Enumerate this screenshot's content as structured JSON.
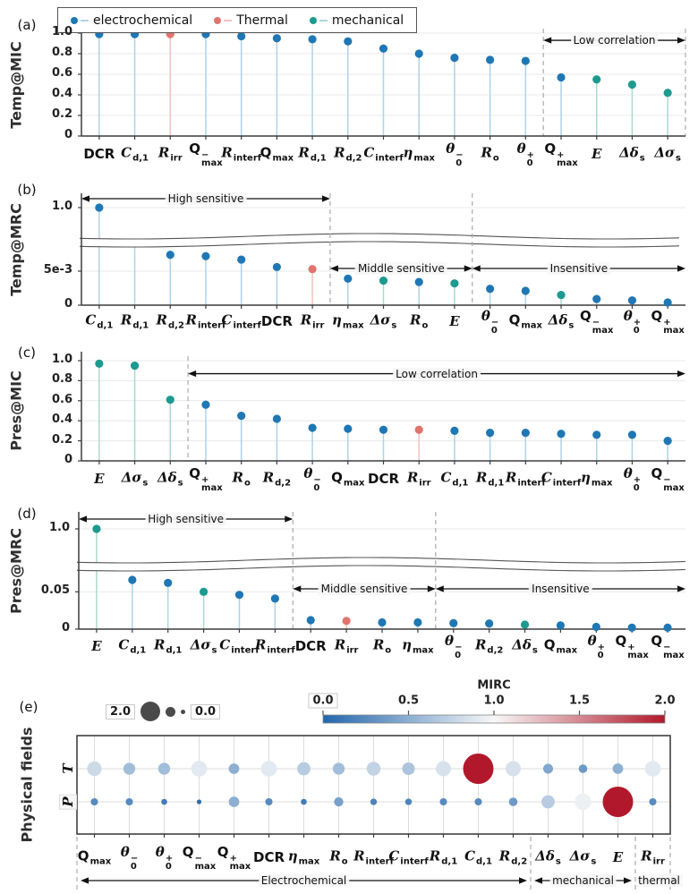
{
  "panel_letters": [
    "(a)",
    "(b)",
    "(c)",
    "(d)",
    "(e)"
  ],
  "legend": {
    "items": [
      {
        "label": "electrochemical",
        "group": "e"
      },
      {
        "label": "Thermal",
        "group": "t"
      },
      {
        "label": "mechanical",
        "group": "m"
      }
    ]
  },
  "colors": {
    "e": "#1f77b4",
    "t": "#e0746e",
    "m": "#1d9a8f",
    "stem_e": "#aed3e6",
    "stem_t": "#f3c1bb",
    "stem_m": "#a9d9cf",
    "grid": "#e8e8e8",
    "axis": "#3c3c3c",
    "dashed": "#aaaaaa",
    "band": "#555555",
    "arrow": "#111111",
    "cmap_low": "#2166ac",
    "cmap_mid": "#f7f7f7",
    "cmap_high": "#b2182b",
    "size_dot": "#4a4a4a"
  },
  "chart_data": [
    {
      "id": "a",
      "type": "stem",
      "ylabel": "Temp@MIC",
      "yticks": [
        "1.0",
        "0.8",
        "0.6",
        "0.4",
        "0.2",
        "0"
      ],
      "ytick_vals": [
        1.0,
        0.8,
        0.6,
        0.4,
        0.2,
        0
      ],
      "categories": [
        {
          "t": "DCR"
        },
        {
          "t": "C",
          "it": 1,
          "sub": "d,1"
        },
        {
          "t": "R",
          "it": 1,
          "sub": "irr"
        },
        {
          "t": "Q",
          "sk": {
            "sup": "−",
            "sub": "max"
          }
        },
        {
          "t": "R",
          "it": 1,
          "sub": "interf"
        },
        {
          "t": "Q",
          "sub": "max"
        },
        {
          "t": "R",
          "it": 1,
          "sub": "d,1"
        },
        {
          "t": "R",
          "it": 1,
          "sub": "d,2"
        },
        {
          "t": "C",
          "it": 1,
          "sub": "interf"
        },
        {
          "t": "η",
          "it": 1,
          "sub": "max"
        },
        {
          "t": "θ",
          "it": 1,
          "sk": {
            "sup": "−",
            "sub": "0"
          }
        },
        {
          "t": "R",
          "it": 1,
          "sub": "o"
        },
        {
          "t": "θ",
          "it": 1,
          "sk": {
            "sup": "+",
            "sub": "0"
          }
        },
        {
          "t": "Q",
          "sk": {
            "sup": "+",
            "sub": "max"
          }
        },
        {
          "t": "E",
          "it": 1
        },
        {
          "t": "Δδ",
          "it": 1,
          "sub": "s"
        },
        {
          "t": "Δσ",
          "it": 1,
          "sub": "s"
        }
      ],
      "groups": [
        "e",
        "e",
        "t",
        "e",
        "e",
        "e",
        "e",
        "e",
        "e",
        "e",
        "e",
        "e",
        "e",
        "e",
        "m",
        "m",
        "m"
      ],
      "values": [
        0.99,
        0.99,
        0.99,
        0.99,
        0.97,
        0.95,
        0.94,
        0.92,
        0.85,
        0.8,
        0.76,
        0.74,
        0.73,
        0.57,
        0.55,
        0.5,
        0.42
      ],
      "separators": [
        13,
        17
      ],
      "annotations": [
        {
          "text": "Low correlation",
          "from": 13,
          "to": 17,
          "v": 0.93
        }
      ]
    },
    {
      "id": "b",
      "type": "stem-broken",
      "ylabel": "Temp@MRC",
      "top_tick": "1.0",
      "bottom_ticks": [
        "5e-3",
        "0"
      ],
      "bottom_tick_vals": [
        0.005,
        0
      ],
      "bottom_max": 0.00855,
      "categories": [
        {
          "t": "C",
          "it": 1,
          "sub": "d,1"
        },
        {
          "t": "R",
          "it": 1,
          "sub": "d,1"
        },
        {
          "t": "R",
          "it": 1,
          "sub": "d,2"
        },
        {
          "t": "R",
          "it": 1,
          "sub": "interf"
        },
        {
          "t": "C",
          "it": 1,
          "sub": "interf"
        },
        {
          "t": "DCR"
        },
        {
          "t": "R",
          "it": 1,
          "sub": "irr"
        },
        {
          "t": "η",
          "it": 1,
          "sub": "max"
        },
        {
          "t": "Δσ",
          "it": 1,
          "sub": "s"
        },
        {
          "t": "R",
          "it": 1,
          "sub": "o"
        },
        {
          "t": "E",
          "it": 1
        },
        {
          "t": "θ",
          "it": 1,
          "sk": {
            "sup": "−",
            "sub": "0"
          }
        },
        {
          "t": "Q",
          "sub": "max"
        },
        {
          "t": "Δδ",
          "it": 1,
          "sub": "s"
        },
        {
          "t": "Q",
          "sk": {
            "sup": "−",
            "sub": "max"
          }
        },
        {
          "t": "θ",
          "it": 1,
          "sk": {
            "sup": "+",
            "sub": "0"
          }
        },
        {
          "t": "Q",
          "sk": {
            "sup": "+",
            "sub": "max"
          }
        }
      ],
      "groups": [
        "e",
        "e",
        "e",
        "e",
        "e",
        "e",
        "t",
        "e",
        "m",
        "e",
        "m",
        "e",
        "e",
        "m",
        "e",
        "e",
        "e"
      ],
      "values": [
        1.0,
        null,
        0.0074,
        0.0072,
        0.0067,
        0.0056,
        0.0053,
        0.0039,
        0.0036,
        0.0034,
        0.0032,
        0.0024,
        0.0021,
        0.0015,
        0.0009,
        0.0007,
        0.0004
      ],
      "separators": [
        7,
        11
      ],
      "annotations": [
        {
          "text": "High sensitive",
          "from": 0,
          "to": 7,
          "pos": "top"
        },
        {
          "text": "Middle sensitive",
          "from": 7,
          "to": 11,
          "pos": "mid"
        },
        {
          "text": "Insensitive",
          "from": 11,
          "to": 17,
          "pos": "mid"
        }
      ]
    },
    {
      "id": "c",
      "type": "stem",
      "ylabel": "Pres@MIC",
      "yticks": [
        "1.0",
        "0.8",
        "0.6",
        "0.4",
        "0.2",
        "0"
      ],
      "ytick_vals": [
        1.0,
        0.8,
        0.6,
        0.4,
        0.2,
        0
      ],
      "categories": [
        {
          "t": "E",
          "it": 1
        },
        {
          "t": "Δσ",
          "it": 1,
          "sub": "s"
        },
        {
          "t": "Δδ",
          "it": 1,
          "sub": "s"
        },
        {
          "t": "Q",
          "sk": {
            "sup": "+",
            "sub": "max"
          }
        },
        {
          "t": "R",
          "it": 1,
          "sub": "o"
        },
        {
          "t": "R",
          "it": 1,
          "sub": "d,2"
        },
        {
          "t": "θ",
          "it": 1,
          "sk": {
            "sup": "−",
            "sub": "0"
          }
        },
        {
          "t": "Q",
          "sub": "max"
        },
        {
          "t": "DCR"
        },
        {
          "t": "R",
          "it": 1,
          "sub": "irr"
        },
        {
          "t": "C",
          "it": 1,
          "sub": "d,1"
        },
        {
          "t": "R",
          "it": 1,
          "sub": "d,1"
        },
        {
          "t": "R",
          "it": 1,
          "sub": "interf"
        },
        {
          "t": "C",
          "it": 1,
          "sub": "interf"
        },
        {
          "t": "η",
          "it": 1,
          "sub": "max"
        },
        {
          "t": "θ",
          "it": 1,
          "sk": {
            "sup": "+",
            "sub": "0"
          }
        },
        {
          "t": "Q",
          "sk": {
            "sup": "−",
            "sub": "max"
          }
        }
      ],
      "groups": [
        "m",
        "m",
        "m",
        "e",
        "e",
        "e",
        "e",
        "e",
        "e",
        "t",
        "e",
        "e",
        "e",
        "e",
        "e",
        "e",
        "e"
      ],
      "values": [
        0.97,
        0.95,
        0.61,
        0.56,
        0.45,
        0.42,
        0.33,
        0.32,
        0.31,
        0.31,
        0.3,
        0.28,
        0.28,
        0.27,
        0.26,
        0.26,
        0.2
      ],
      "separators": [
        3
      ],
      "annotations": [
        {
          "text": "Low correlation",
          "from": 3,
          "to": 17,
          "v": 0.87
        }
      ]
    },
    {
      "id": "d",
      "type": "stem-broken",
      "ylabel": "Pres@MRC",
      "top_tick": "1.0",
      "bottom_ticks": [
        "0.05",
        "0"
      ],
      "bottom_tick_vals": [
        0.05,
        0
      ],
      "bottom_max": 0.078,
      "categories": [
        {
          "t": "E",
          "it": 1
        },
        {
          "t": "C",
          "it": 1,
          "sub": "d,1"
        },
        {
          "t": "R",
          "it": 1,
          "sub": "d,1"
        },
        {
          "t": "Δσ",
          "it": 1,
          "sub": "s"
        },
        {
          "t": "C",
          "it": 1,
          "sub": "interf"
        },
        {
          "t": "R",
          "it": 1,
          "sub": "interf"
        },
        {
          "t": "DCR"
        },
        {
          "t": "R",
          "it": 1,
          "sub": "irr"
        },
        {
          "t": "R",
          "it": 1,
          "sub": "o"
        },
        {
          "t": "η",
          "it": 1,
          "sub": "max"
        },
        {
          "t": "θ",
          "it": 1,
          "sk": {
            "sup": "−",
            "sub": "0"
          }
        },
        {
          "t": "R",
          "it": 1,
          "sub": "d,2"
        },
        {
          "t": "Δδ",
          "it": 1,
          "sub": "s"
        },
        {
          "t": "Q",
          "sub": "max"
        },
        {
          "t": "θ",
          "it": 1,
          "sk": {
            "sup": "+",
            "sub": "0"
          }
        },
        {
          "t": "Q",
          "sk": {
            "sup": "+",
            "sub": "max"
          }
        },
        {
          "t": "Q",
          "sk": {
            "sup": "−",
            "sub": "max"
          }
        }
      ],
      "groups": [
        "m",
        "e",
        "e",
        "m",
        "e",
        "e",
        "e",
        "t",
        "e",
        "e",
        "e",
        "e",
        "m",
        "e",
        "e",
        "e",
        "e"
      ],
      "values": [
        1.0,
        0.066,
        0.062,
        0.05,
        0.046,
        0.041,
        0.012,
        0.011,
        0.009,
        0.009,
        0.008,
        0.0075,
        0.006,
        0.005,
        0.003,
        0.002,
        0.002
      ],
      "separators": [
        6,
        10
      ],
      "annotations": [
        {
          "text": "High sensitive",
          "from": 0,
          "to": 6,
          "pos": "top"
        },
        {
          "text": "Middle sensitive",
          "from": 6,
          "to": 10,
          "pos": "mid"
        },
        {
          "text": "Insensitive",
          "from": 10,
          "to": 17,
          "pos": "mid"
        }
      ]
    },
    {
      "id": "e",
      "type": "bubble",
      "ylabel": "Physical fields",
      "rows": [
        "T",
        "P"
      ],
      "categories": [
        {
          "t": "Q",
          "sub": "max"
        },
        {
          "t": "θ",
          "it": 1,
          "sk": {
            "sup": "−",
            "sub": "0"
          }
        },
        {
          "t": "θ",
          "it": 1,
          "sk": {
            "sup": "+",
            "sub": "0"
          }
        },
        {
          "t": "Q",
          "sk": {
            "sup": "−",
            "sub": "max"
          }
        },
        {
          "t": "Q",
          "sk": {
            "sup": "+",
            "sub": "max"
          }
        },
        {
          "t": "DCR"
        },
        {
          "t": "η",
          "it": 1,
          "sub": "max"
        },
        {
          "t": "R",
          "it": 1,
          "sub": "o"
        },
        {
          "t": "R",
          "it": 1,
          "sub": "interf"
        },
        {
          "t": "C",
          "it": 1,
          "sub": "interf"
        },
        {
          "t": "R",
          "it": 1,
          "sub": "d,1"
        },
        {
          "t": "C",
          "it": 1,
          "sub": "d,1"
        },
        {
          "t": "R",
          "it": 1,
          "sub": "d,2"
        },
        {
          "t": "Δδ",
          "it": 1,
          "sub": "s"
        },
        {
          "t": "Δσ",
          "it": 1,
          "sub": "s"
        },
        {
          "t": "E",
          "it": 1
        },
        {
          "t": "R",
          "it": 1,
          "sub": "irr"
        }
      ],
      "series": [
        {
          "name": "T",
          "values": [
            0.8,
            0.6,
            0.6,
            0.9,
            0.5,
            0.9,
            0.7,
            0.6,
            0.75,
            0.65,
            0.85,
            2.0,
            0.85,
            0.45,
            0.35,
            0.5,
            0.9
          ]
        },
        {
          "name": "P",
          "values": [
            0.25,
            0.25,
            0.15,
            0.05,
            0.5,
            0.25,
            0.15,
            0.4,
            0.2,
            0.2,
            0.25,
            0.25,
            0.35,
            0.7,
            0.95,
            2.0,
            0.25
          ]
        }
      ],
      "colorbar": {
        "title": "MIRC",
        "ticks": [
          "0.0",
          "0.5",
          "1.0",
          "1.5",
          "2.0"
        ],
        "tick_vals": [
          0,
          0.5,
          1.0,
          1.5,
          2.0
        ],
        "range": [
          0,
          2
        ]
      },
      "size_legend": {
        "max_label": "2.0",
        "min_label": "0.0"
      },
      "separators": [
        0,
        13,
        16,
        17
      ],
      "group_arrows": [
        {
          "text": "Electrochemical",
          "from": 0,
          "to": 13
        },
        {
          "text": "mechanical",
          "from": 13,
          "to": 16
        },
        {
          "text": "thermal",
          "from": 16,
          "to": 17
        }
      ]
    }
  ]
}
